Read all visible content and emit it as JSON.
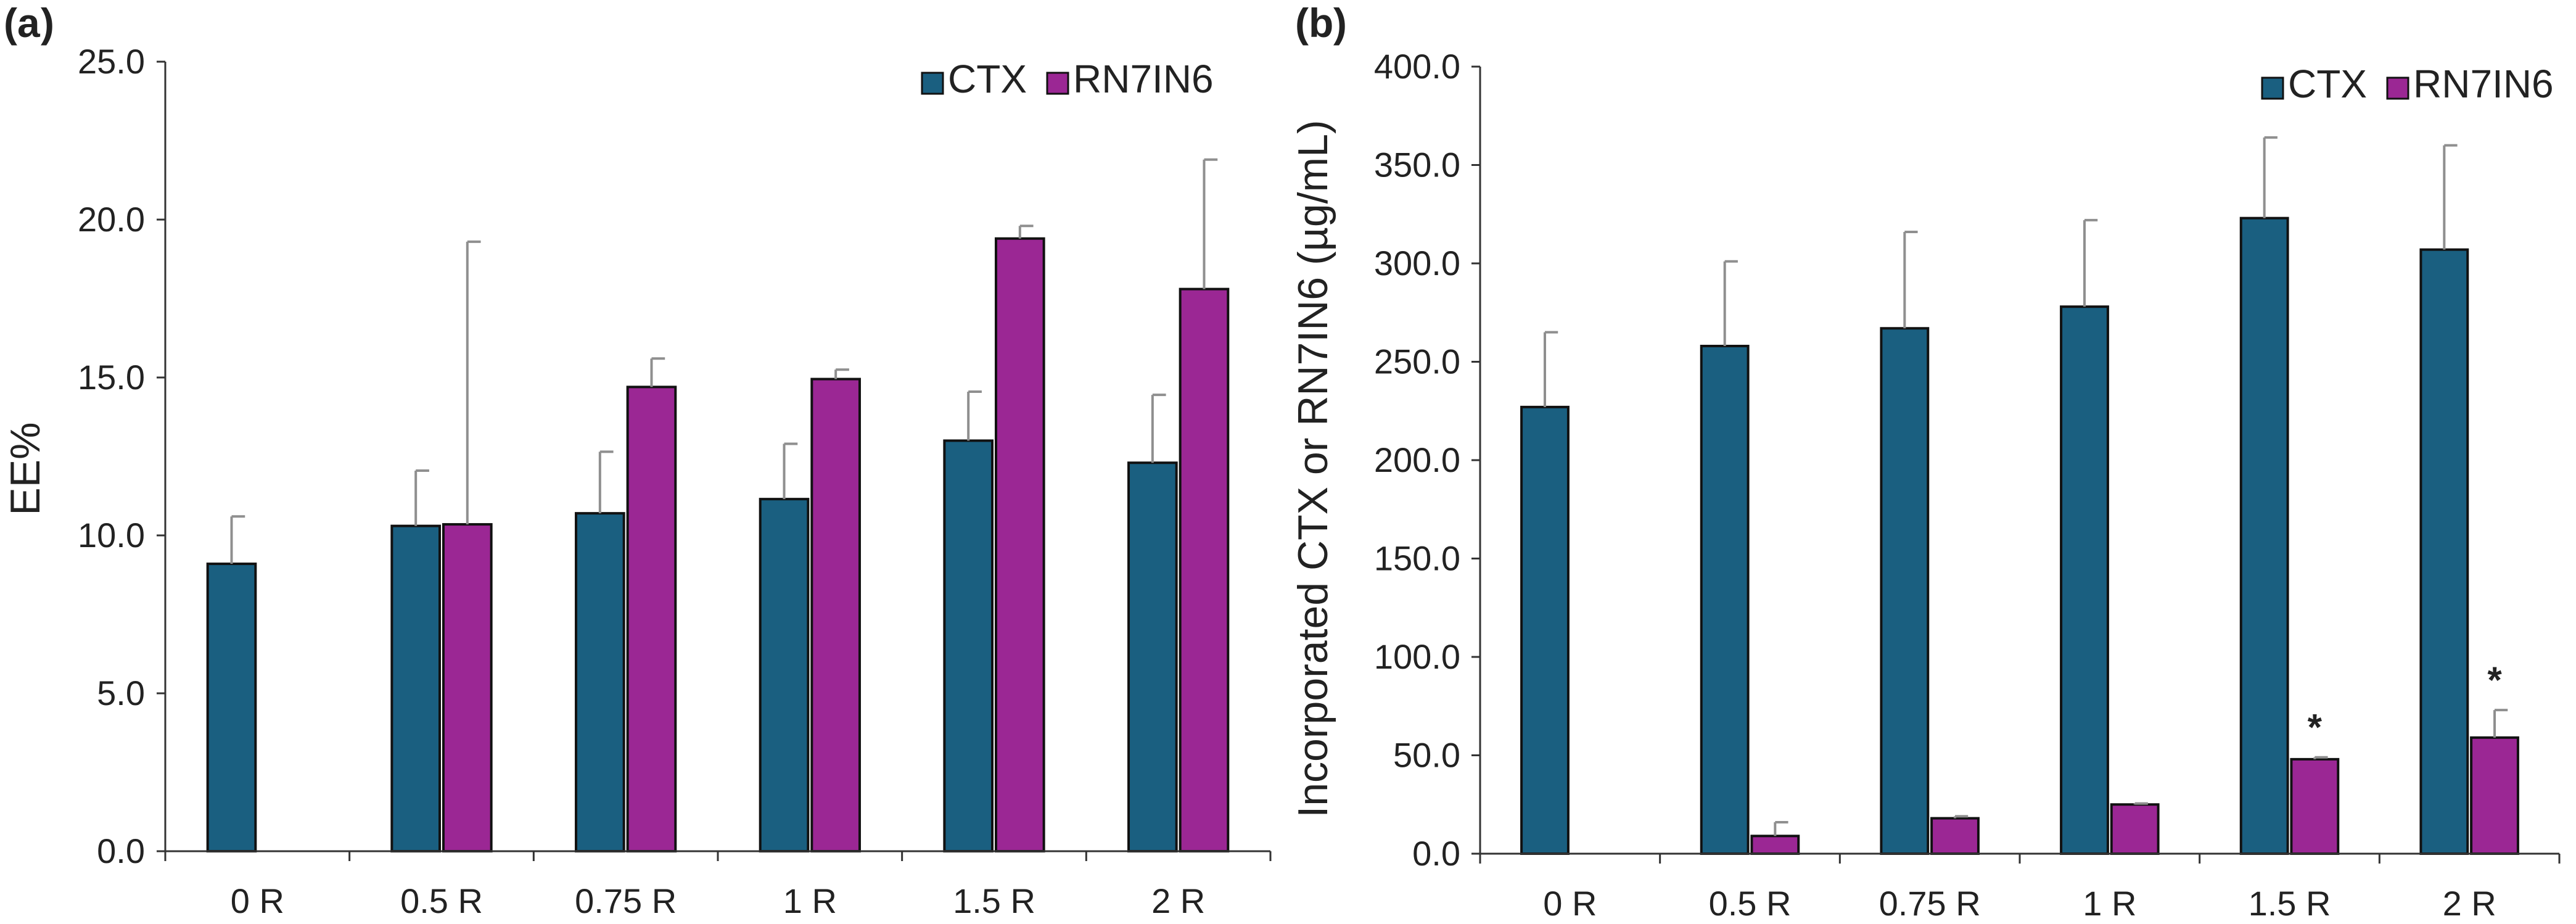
{
  "colors": {
    "ctx": "#1a5f80",
    "rn7in6": "#9b2794"
  },
  "chart_data": [
    {
      "type": "bar",
      "panel_label": "(a)",
      "panel_letter": "a",
      "xlabel": "",
      "ylabel": "EE%",
      "ylim": [
        0,
        25
      ],
      "yticks": [
        "0.0",
        "5.0",
        "10.0",
        "15.0",
        "20.0",
        "25.0"
      ],
      "categories": [
        "0 R",
        "0.5 R",
        "0.75 R",
        "1 R",
        "1.5 R",
        "2 R"
      ],
      "legend": {
        "position": "top-right",
        "entries": [
          "CTX",
          "RN7IN6"
        ]
      },
      "series": [
        {
          "name": "CTX",
          "values": [
            9.1,
            10.3,
            10.7,
            11.15,
            13.0,
            12.3
          ],
          "errors": [
            1.5,
            1.75,
            1.95,
            1.75,
            1.55,
            2.15
          ]
        },
        {
          "name": "RN7IN6",
          "values": [
            null,
            10.35,
            14.7,
            14.95,
            19.4,
            17.8
          ],
          "errors": [
            null,
            8.95,
            0.9,
            0.3,
            0.4,
            4.1
          ]
        }
      ],
      "annotations": []
    },
    {
      "type": "bar",
      "panel_label": "(b)",
      "panel_letter": "b",
      "xlabel": "",
      "ylabel": "Incorporated CTX or RN7IN6 (µg/mL)",
      "ylim": [
        0,
        400
      ],
      "yticks": [
        "0.0",
        "50.0",
        "100.0",
        "150.0",
        "200.0",
        "250.0",
        "300.0",
        "350.0",
        "400.0"
      ],
      "categories": [
        "0 R",
        "0.5 R",
        "0.75 R",
        "1 R",
        "1.5 R",
        "2 R"
      ],
      "legend": {
        "position": "top-right",
        "entries": [
          "CTX",
          "RN7IN6"
        ]
      },
      "series": [
        {
          "name": "CTX",
          "values": [
            227,
            258,
            267,
            278,
            323,
            307
          ],
          "errors": [
            38,
            43,
            49,
            44,
            41,
            53
          ]
        },
        {
          "name": "RN7IN6",
          "values": [
            null,
            9,
            18,
            25,
            48,
            59
          ],
          "errors": [
            null,
            7,
            1,
            0.5,
            1,
            14
          ]
        }
      ],
      "annotations": [
        {
          "text": "*",
          "category": "1.5 R",
          "series": "RN7IN6"
        },
        {
          "text": "*",
          "category": "2 R",
          "series": "RN7IN6"
        }
      ]
    }
  ]
}
